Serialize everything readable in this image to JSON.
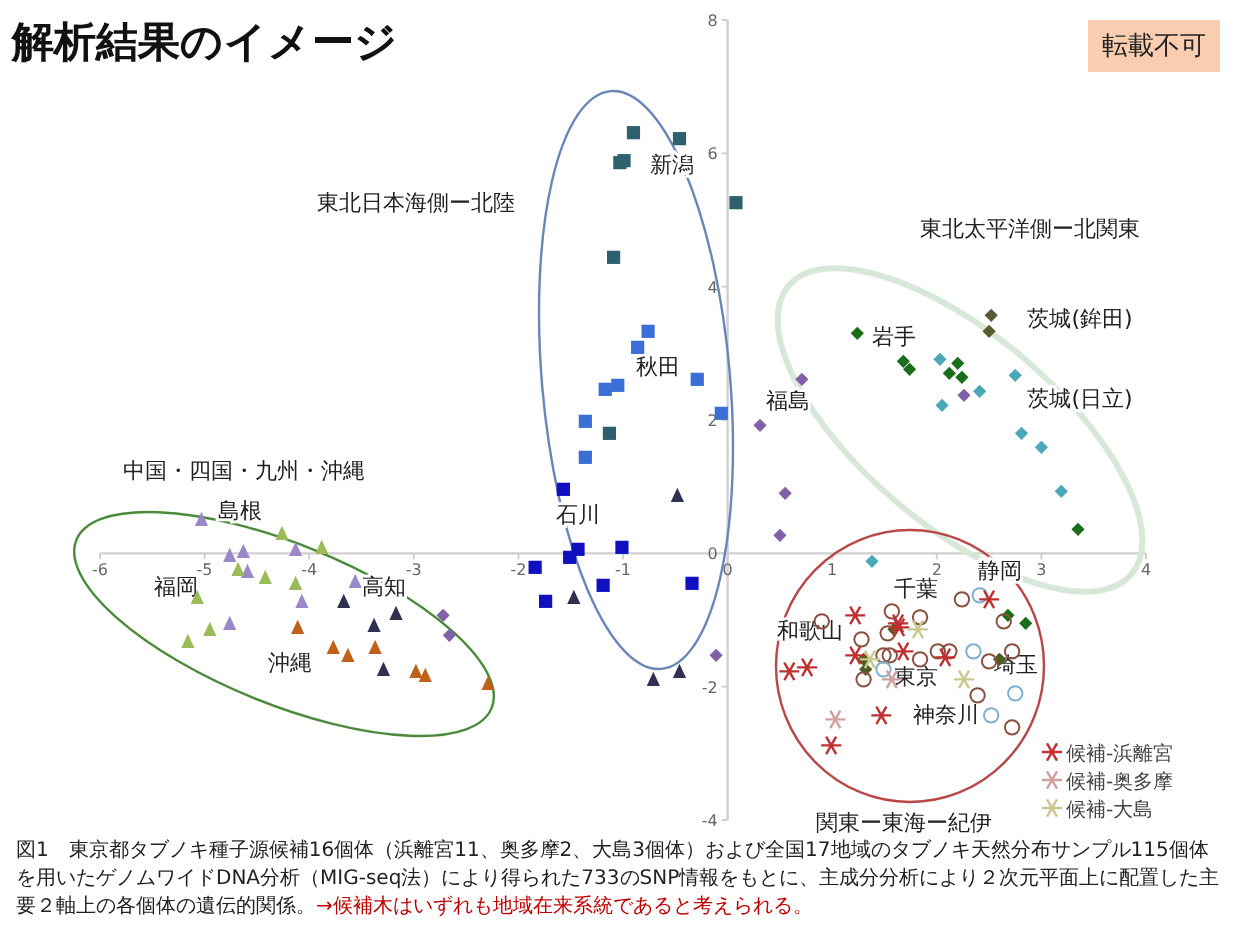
{
  "chart_data": {
    "type": "scatter",
    "title": "解析結果のイメージ",
    "xlim": [
      -6,
      4
    ],
    "ylim": [
      -4,
      8
    ],
    "xticks": [
      -6,
      -5,
      -4,
      -3,
      -2,
      -1,
      0,
      1,
      2,
      3,
      4
    ],
    "yticks": [
      -4,
      -2,
      0,
      2,
      4,
      6,
      8
    ],
    "grid": false,
    "legend": "bottom right",
    "series": [
      {
        "color": "#2f6070",
        "marker": "square",
        "x": [
          -0.9,
          -0.46,
          -1.03,
          -0.99,
          0.08,
          -1.09,
          -1.13
        ],
        "values": [
          6.31,
          6.22,
          5.86,
          5.89,
          5.26,
          4.44,
          1.8
        ]
      },
      {
        "color": "#3a6fd8",
        "marker": "square",
        "x": [
          -0.76,
          -0.86,
          -0.29,
          -0.06,
          -1.05,
          -1.17,
          -1.36,
          -1.36
        ],
        "values": [
          3.33,
          3.09,
          2.61,
          2.1,
          2.52,
          2.46,
          1.98,
          1.44
        ]
      },
      {
        "color": "#1010c0",
        "marker": "square",
        "x": [
          -1.57,
          -1.51,
          -1.43,
          -1.01,
          -1.84,
          -1.74,
          -1.19,
          -0.34
        ],
        "values": [
          0.96,
          -0.06,
          0.06,
          0.09,
          -0.21,
          -0.72,
          -0.48,
          -0.45
        ]
      },
      {
        "color": "#9a88c8",
        "marker": "triangle",
        "x": [
          -5.03,
          -4.76,
          -4.63,
          -4.59,
          -4.13,
          -4.07,
          -3.56,
          -4.76
        ],
        "values": [
          0.51,
          -0.03,
          0.03,
          -0.27,
          0.06,
          -0.72,
          -0.42,
          -1.05
        ]
      },
      {
        "color": "#9bbb59",
        "marker": "triangle",
        "x": [
          -4.26,
          -3.88,
          -4.68,
          -4.42,
          -4.13,
          -5.07,
          -4.95,
          -5.16
        ],
        "values": [
          0.3,
          0.09,
          -0.24,
          -0.36,
          -0.45,
          -0.66,
          -1.14,
          -1.32
        ]
      },
      {
        "color": "#c0601a",
        "marker": "triangle",
        "x": [
          -4.11,
          -3.77,
          -3.63,
          -3.37,
          -2.98,
          -2.89,
          -2.29
        ],
        "values": [
          -1.11,
          -1.41,
          -1.53,
          -1.41,
          -1.77,
          -1.83,
          -1.95
        ]
      },
      {
        "color": "#303050",
        "marker": "triangle",
        "x": [
          -3.67,
          -3.17,
          -3.38,
          -3.29,
          -1.47,
          -0.48,
          -0.71,
          -0.46
        ],
        "values": [
          -0.72,
          -0.9,
          -1.08,
          -1.74,
          -0.66,
          0.87,
          -1.89,
          -1.77
        ]
      },
      {
        "color": "#8060a8",
        "marker": "diamond",
        "x": [
          -2.72,
          -2.66,
          -0.11,
          0.71,
          0.31,
          0.55,
          0.5,
          2.26
        ],
        "values": [
          -0.93,
          -1.23,
          -1.53,
          2.61,
          1.92,
          0.9,
          0.27,
          2.37
        ]
      },
      {
        "color": "#1a6e1a",
        "marker": "diamond",
        "x": [
          1.24,
          1.68,
          1.74,
          2.2,
          2.12,
          2.24,
          3.35,
          2.68,
          2.85
        ],
        "values": [
          3.3,
          2.88,
          2.76,
          2.85,
          2.7,
          2.64,
          0.36,
          -0.93,
          -1.05
        ]
      },
      {
        "color": "#4b5e20",
        "marker": "diamond",
        "x": [
          1.3,
          1.32,
          1.59,
          2.6
        ],
        "values": [
          -1.59,
          -1.74,
          -1.14,
          -1.59
        ]
      },
      {
        "color": "#5a5a30",
        "marker": "diamond",
        "x": [
          2.52,
          2.5
        ],
        "values": [
          3.57,
          3.33
        ]
      },
      {
        "color": "#4aa8b8",
        "marker": "diamond",
        "x": [
          2.03,
          2.05,
          2.41,
          2.75,
          2.81,
          3.0,
          3.19,
          1.38
        ],
        "values": [
          2.91,
          2.22,
          2.43,
          2.67,
          1.8,
          1.59,
          0.93,
          -0.12
        ]
      },
      {
        "color": "#8a5040",
        "marker": "circle",
        "x": [
          2.24,
          2.64,
          0.9,
          1.28,
          1.57,
          1.84,
          1.53,
          1.49,
          1.55,
          1.3,
          1.84,
          2.01,
          2.12,
          2.5,
          2.72,
          2.39,
          2.72
        ],
        "values": [
          -0.69,
          -1.02,
          -1.02,
          -1.29,
          -0.87,
          -0.96,
          -1.2,
          -1.53,
          -1.53,
          -1.89,
          -1.59,
          -1.47,
          -1.47,
          -1.62,
          -1.47,
          -2.13,
          -2.61
        ]
      },
      {
        "color": "#80b0d0",
        "marker": "circle",
        "x": [
          2.41,
          2.35,
          2.75,
          2.52,
          1.49
        ],
        "values": [
          -0.63,
          -1.47,
          -2.1,
          -2.43,
          -1.74
        ]
      },
      {
        "name": "候補-浜離宮",
        "color": "#c03030",
        "marker": "cross",
        "x": [
          2.5,
          1.22,
          1.63,
          1.22,
          1.68,
          2.08,
          0.59,
          0.76,
          1.47,
          0.99,
          1.64
        ],
        "values": [
          -0.69,
          -0.93,
          -1.05,
          -1.53,
          -1.47,
          -1.56,
          -1.77,
          -1.71,
          -2.43,
          -2.88,
          -1.11
        ]
      },
      {
        "name": "候補-奥多摩",
        "color": "#d0a0a0",
        "marker": "cross",
        "x": [
          1.03,
          1.57
        ],
        "values": [
          -2.49,
          -1.89
        ]
      },
      {
        "name": "候補-大島",
        "color": "#c8c890",
        "marker": "cross",
        "x": [
          1.82,
          2.26,
          1.36
        ],
        "values": [
          -1.14,
          -1.89,
          -1.59
        ]
      }
    ],
    "annotations": [
      "新潟",
      "秋田",
      "石川",
      "福島",
      "岩手",
      "茨城(鉾田)",
      "茨城(日立)",
      "島根",
      "福岡",
      "高知",
      "沖縄",
      "静岡",
      "千葉",
      "和歌山",
      "東京",
      "埼玉",
      "神奈川",
      "東北日本海側ー北陸",
      "東北太平洋側ー北関東",
      "中国・四国・九州・沖縄",
      "関東ー東海ー紀伊",
      "転載不可",
      "図1　東京都タブノキ種子源候補16個体（浜離宮11、奥多摩2、大島3個体）および全国17地域のタブノキ天然分布サンプル115個体を用いたゲノムワイドDNA分析（MIG-seq法）により得られた733のSNP情報をもとに、主成分分析により２次元平面上に配置した主要２軸上の各個体の遺伝的関係。",
      "→候補木はいずれも地域在来系統であると考えられる。"
    ]
  }
}
